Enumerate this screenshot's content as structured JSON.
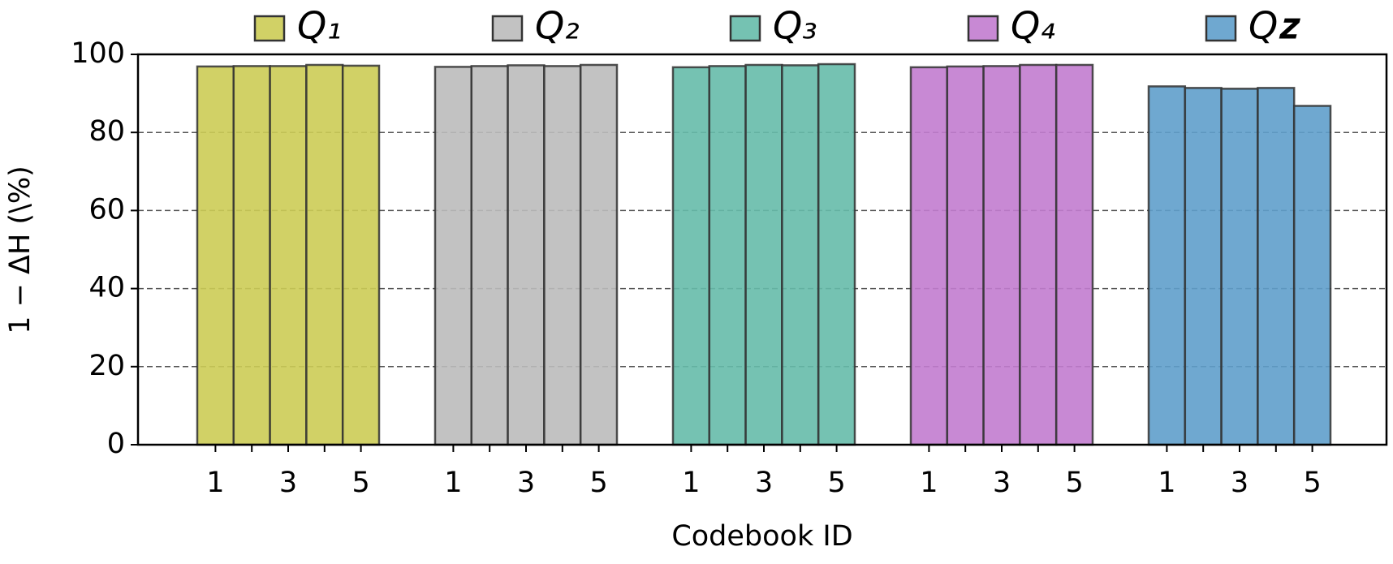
{
  "chart_data": {
    "type": "bar",
    "ylabel": "1 − ΔH (\\%)",
    "xlabel": "Codebook ID",
    "categories": [
      "1",
      null,
      "3",
      null,
      "5"
    ],
    "series": [
      {
        "name": "Q₁",
        "color": "#cccc55",
        "values": [
          96.9,
          97.0,
          97.0,
          97.3,
          97.1
        ]
      },
      {
        "name": "Q₂",
        "color": "#bbbbbb",
        "values": [
          96.8,
          97.0,
          97.2,
          97.0,
          97.3
        ]
      },
      {
        "name": "Q₃",
        "color": "#66bbaa",
        "values": [
          96.7,
          97.0,
          97.3,
          97.2,
          97.5
        ]
      },
      {
        "name": "Q₄",
        "color": "#c27ccf",
        "values": [
          96.7,
          96.9,
          97.0,
          97.3,
          97.3
        ]
      },
      {
        "name": "Q𝐳",
        "color": "#5f9ecb",
        "values": [
          91.8,
          91.4,
          91.2,
          91.4,
          86.8
        ]
      }
    ],
    "ylim": [
      0,
      100
    ],
    "yticks": [
      0,
      20,
      40,
      60,
      80,
      100
    ],
    "grid": true
  }
}
